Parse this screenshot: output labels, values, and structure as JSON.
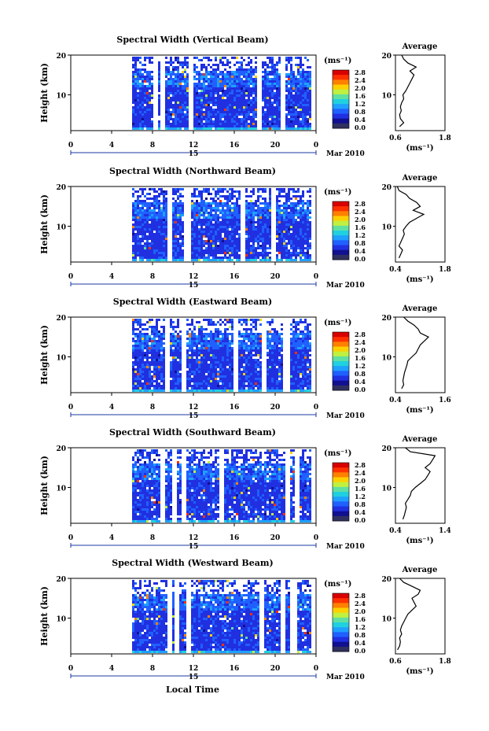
{
  "figure": {
    "date_label": "Mar 2010",
    "day_label": "15",
    "xlabel": "Local Time",
    "colorbar_unit": "(ms⁻¹)",
    "colorbar_ticks": [
      "2.8",
      "2.4",
      "2.0",
      "1.6",
      "1.2",
      "0.8",
      "0.4",
      "0.0"
    ],
    "colorbar_colors": [
      "#d80000",
      "#ff3000",
      "#ff8000",
      "#ffd000",
      "#c0f040",
      "#60e0a0",
      "#20d0e0",
      "#1ea0ff",
      "#2060ff",
      "#2030e0",
      "#101090",
      "#303060"
    ]
  },
  "chart_data": [
    {
      "type": "heatmap",
      "title": "Spectral Width (Vertical Beam)",
      "ylabel": "Height (km)",
      "x_ticks": [
        "0",
        "4",
        "8",
        "12",
        "16",
        "20",
        "0"
      ],
      "y_ticks": [
        "20",
        "10"
      ],
      "xlim": [
        0,
        24
      ],
      "ylim": [
        1,
        20
      ],
      "data_start_hour": 6,
      "gap_hours": [
        8.2,
        8.9,
        11.7,
        18.3,
        20.6
      ],
      "profile": {
        "title": "Average",
        "xlabel": "(ms⁻¹)",
        "x_ticks": [
          "0.6",
          "1.8"
        ],
        "xlim": [
          0.6,
          1.8
        ],
        "heights": [
          2,
          3,
          4,
          5,
          6,
          7,
          8,
          9,
          10,
          11,
          12,
          13,
          14,
          15,
          16,
          17,
          18,
          19,
          20
        ],
        "values": [
          0.7,
          0.8,
          0.72,
          0.7,
          0.74,
          0.72,
          0.75,
          0.8,
          0.78,
          0.85,
          0.9,
          0.95,
          1.0,
          1.05,
          0.95,
          1.1,
          0.9,
          0.8,
          0.75
        ]
      }
    },
    {
      "type": "heatmap",
      "title": "Spectral Width (Northward Beam)",
      "ylabel": "Height (km)",
      "x_ticks": [
        "0",
        "4",
        "8",
        "12",
        "16",
        "20",
        "0"
      ],
      "y_ticks": [
        "20",
        "10"
      ],
      "xlim": [
        0,
        24
      ],
      "ylim": [
        1,
        20
      ],
      "data_start_hour": 6,
      "gap_hours": [
        9.5,
        11.3,
        16.8,
        19.8
      ],
      "profile": {
        "title": "Average",
        "xlabel": "(ms⁻¹)",
        "x_ticks": [
          "0.4",
          "1.8"
        ],
        "xlim": [
          0.4,
          1.8
        ],
        "heights": [
          2,
          3,
          4,
          5,
          6,
          7,
          8,
          9,
          10,
          11,
          12,
          13,
          14,
          15,
          16,
          17,
          18,
          19,
          20
        ],
        "values": [
          0.5,
          0.55,
          0.6,
          0.5,
          0.55,
          0.6,
          0.65,
          0.62,
          0.7,
          0.8,
          1.0,
          1.2,
          0.9,
          1.1,
          1.0,
          0.8,
          0.7,
          0.5,
          0.45
        ]
      }
    },
    {
      "type": "heatmap",
      "title": "Spectral Width (Eastward Beam)",
      "ylabel": "Height (km)",
      "x_ticks": [
        "0",
        "4",
        "8",
        "12",
        "16",
        "20",
        "0"
      ],
      "y_ticks": [
        "20",
        "10"
      ],
      "xlim": [
        0,
        24
      ],
      "ylim": [
        1,
        20
      ],
      "data_start_hour": 6,
      "gap_hours": [
        9.3,
        11.0,
        16.0,
        18.8,
        21.0
      ],
      "profile": {
        "title": "Average",
        "xlabel": "(ms⁻¹)",
        "x_ticks": [
          "0.4",
          "1.6"
        ],
        "xlim": [
          0.4,
          1.6
        ],
        "heights": [
          2,
          3,
          4,
          5,
          6,
          7,
          8,
          9,
          10,
          11,
          12,
          13,
          14,
          15,
          16,
          17,
          18,
          19,
          20
        ],
        "values": [
          0.55,
          0.6,
          0.58,
          0.6,
          0.62,
          0.65,
          0.68,
          0.7,
          0.8,
          0.9,
          0.95,
          1.0,
          1.1,
          1.2,
          1.0,
          0.95,
          0.85,
          0.7,
          0.6
        ]
      }
    },
    {
      "type": "heatmap",
      "title": "Spectral Width (Southward Beam)",
      "ylabel": "Height (km)",
      "x_ticks": [
        "0",
        "4",
        "8",
        "12",
        "16",
        "20",
        "0"
      ],
      "y_ticks": [
        "20",
        "10"
      ],
      "xlim": [
        0,
        24
      ],
      "ylim": [
        1,
        20
      ],
      "data_start_hour": 6,
      "gap_hours": [
        8.9,
        10.1,
        11.0,
        14.6,
        21.2,
        22.1
      ],
      "profile": {
        "title": "Average",
        "xlabel": "(ms⁻¹)",
        "x_ticks": [
          "0.4",
          "1.4"
        ],
        "xlim": [
          0.4,
          1.4
        ],
        "heights": [
          2,
          3,
          4,
          5,
          6,
          7,
          8,
          9,
          10,
          11,
          12,
          13,
          14,
          15,
          16,
          17,
          18,
          19,
          20
        ],
        "values": [
          0.55,
          0.58,
          0.6,
          0.62,
          0.6,
          0.65,
          0.7,
          0.72,
          0.8,
          0.9,
          1.0,
          1.05,
          1.1,
          1.0,
          1.1,
          1.15,
          1.2,
          0.7,
          0.6
        ]
      }
    },
    {
      "type": "heatmap",
      "title": "Spectral Width (Westward Beam)",
      "ylabel": "Height (km)",
      "x_ticks": [
        "0",
        "4",
        "8",
        "12",
        "16",
        "20",
        "0"
      ],
      "y_ticks": [
        "20",
        "10"
      ],
      "xlim": [
        0,
        24
      ],
      "ylim": [
        1,
        20
      ],
      "data_start_hour": 6,
      "gap_hours": [
        9.5,
        10.2,
        11.4,
        18.5,
        20.6,
        21.7
      ],
      "profile": {
        "title": "Average",
        "xlabel": "(ms⁻¹)",
        "x_ticks": [
          "0.6",
          "1.8"
        ],
        "xlim": [
          0.6,
          1.8
        ],
        "heights": [
          2,
          3,
          4,
          5,
          6,
          7,
          8,
          9,
          10,
          11,
          12,
          13,
          14,
          15,
          16,
          17,
          18,
          19,
          20
        ],
        "values": [
          0.65,
          0.7,
          0.72,
          0.7,
          0.75,
          0.72,
          0.75,
          0.8,
          0.85,
          0.9,
          1.0,
          1.1,
          1.05,
          1.0,
          1.15,
          1.2,
          1.0,
          0.8,
          0.7
        ]
      }
    }
  ]
}
